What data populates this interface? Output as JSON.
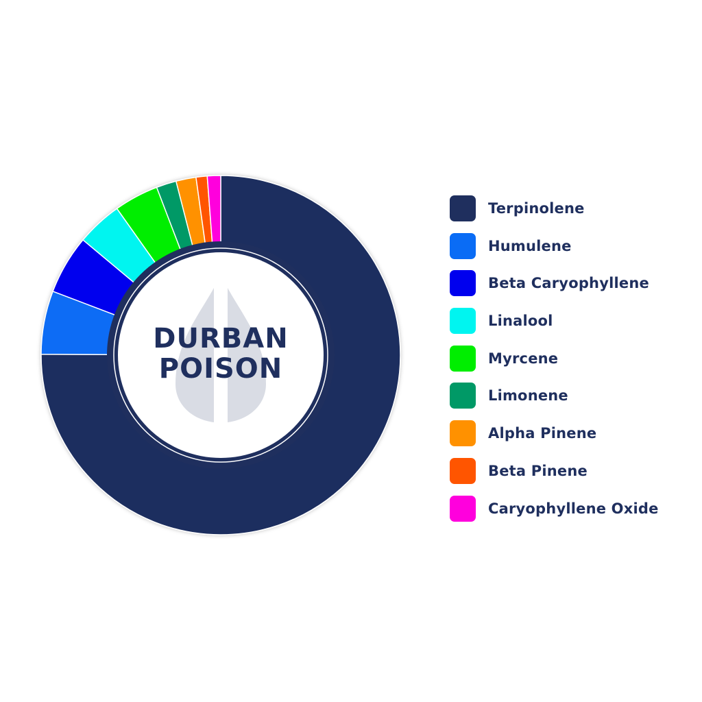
{
  "chart_data": {
    "type": "pie",
    "donut": true,
    "center_label": [
      "DURBAN",
      "POISON"
    ],
    "legend_position": "right",
    "slices": [
      {
        "name": "Terpinolene",
        "value": 75.0,
        "color": "#1f2f5e"
      },
      {
        "name": "Humulene",
        "value": 5.7,
        "color": "#0a6cf5"
      },
      {
        "name": "Beta Caryophyllene",
        "value": 5.3,
        "color": "#0000ee"
      },
      {
        "name": "Linalool",
        "value": 4.1,
        "color": "#00f5f0"
      },
      {
        "name": "Myrcene",
        "value": 4.0,
        "color": "#00ee00"
      },
      {
        "name": "Limonene",
        "value": 1.8,
        "color": "#009966"
      },
      {
        "name": "Alpha Pinene",
        "value": 1.8,
        "color": "#ff9100"
      },
      {
        "name": "Beta Pinene",
        "value": 1.0,
        "color": "#ff5500"
      },
      {
        "name": "Caryophyllene Oxide",
        "value": 1.2,
        "color": "#ff00dd"
      }
    ]
  },
  "icons": {
    "center": "drop-leaf-icon"
  }
}
